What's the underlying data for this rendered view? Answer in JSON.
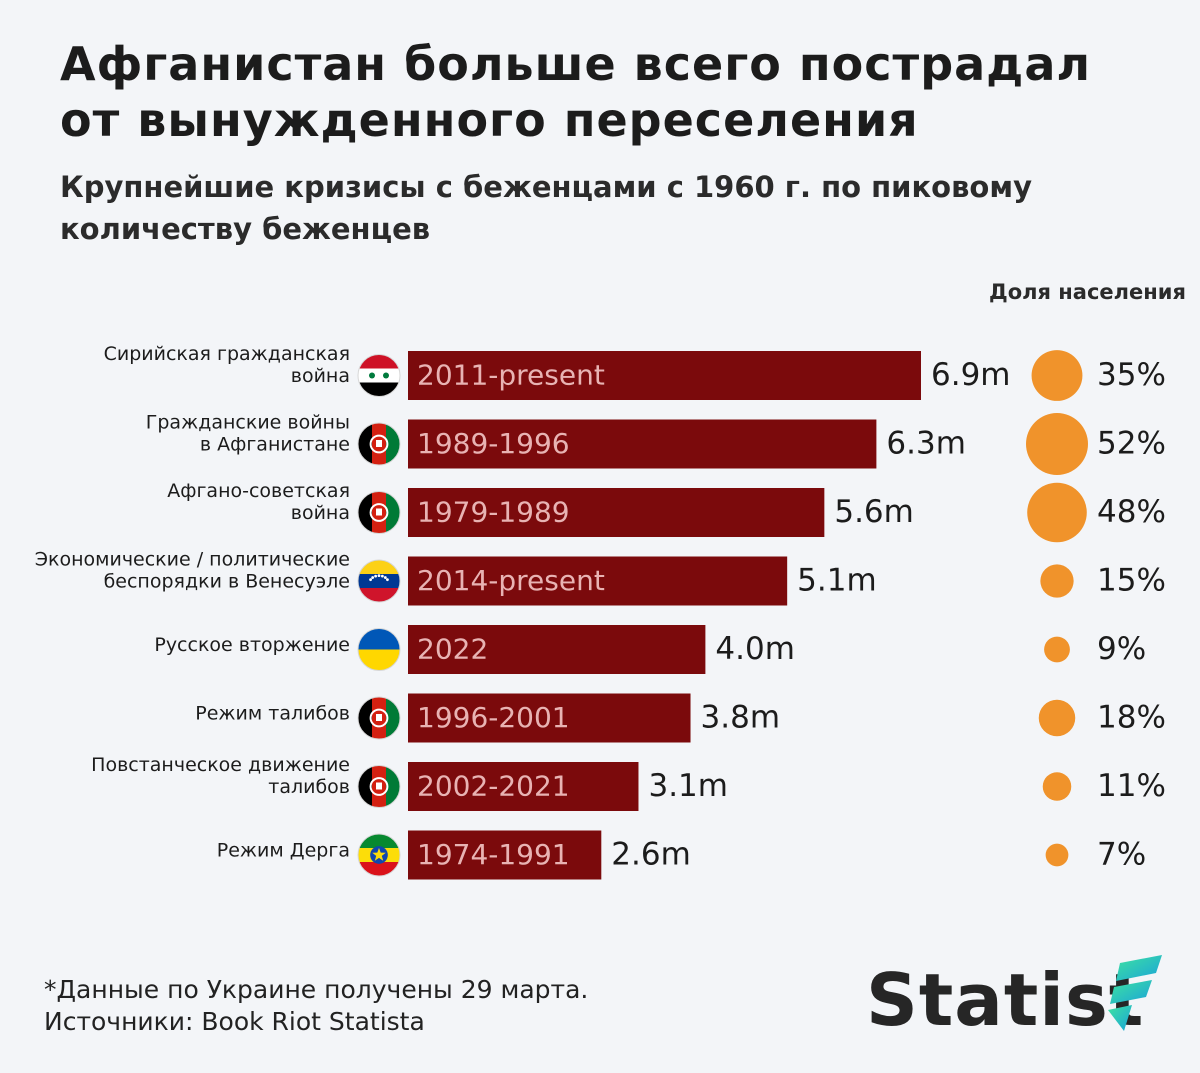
{
  "title": "Афганистан больше всего пострадал от вынужденного переселения",
  "subtitle": "Крупнейшие кризисы с беженцами с 1960 г. по пиковому количеству беженцев",
  "share_header": "Доля населения",
  "footnote": "*Данные по Украине получены 29 марта.",
  "sources": "Источники: Book Riot Statista",
  "brand": "Statist",
  "colors": {
    "bar": "#7b0a0c",
    "bubble": "#f0932b",
    "background": "#f3f5f8",
    "period_text": "#e8b3b3"
  },
  "chart_data": {
    "type": "bar",
    "orientation": "horizontal",
    "title": "Крупнейшие кризисы с беженцами с 1960 г. по пиковому количеству беженцев",
    "xlabel": "",
    "ylabel": "",
    "xlim": [
      0,
      6.9
    ],
    "unit": "m",
    "grid": false,
    "items": [
      {
        "name": [
          "Сирийская гражданская",
          "война"
        ],
        "period": "2011-present",
        "value": 6.9,
        "label": "6.9m",
        "share": 35,
        "share_label": "35%",
        "flag": "syria-flag-icon"
      },
      {
        "name": [
          "Гражданские войны",
          "в Афганистане"
        ],
        "period": "1989-1996",
        "value": 6.3,
        "label": "6.3m",
        "share": 52,
        "share_label": "52%",
        "flag": "afghanistan-flag-icon"
      },
      {
        "name": [
          "Афгано-советская",
          "война"
        ],
        "period": "1979-1989",
        "value": 5.6,
        "label": "5.6m",
        "share": 48,
        "share_label": "48%",
        "flag": "afghanistan-flag-icon"
      },
      {
        "name": [
          "Экономические / политические",
          "беспорядки в Венесуэле"
        ],
        "period": "2014-present",
        "value": 5.1,
        "label": "5.1m",
        "share": 15,
        "share_label": "15%",
        "flag": "venezuela-flag-icon"
      },
      {
        "name": [
          "Русское вторжение"
        ],
        "period": "2022",
        "value": 4.0,
        "label": "4.0m",
        "share": 9,
        "share_label": "9%",
        "flag": "ukraine-flag-icon"
      },
      {
        "name": [
          "Режим талибов"
        ],
        "period": "1996-2001",
        "value": 3.8,
        "label": "3.8m",
        "share": 18,
        "share_label": "18%",
        "flag": "afghanistan-flag-icon"
      },
      {
        "name": [
          "Повстанческое движение",
          "талибов"
        ],
        "period": "2002-2021",
        "value": 3.1,
        "label": "3.1m",
        "share": 11,
        "share_label": "11%",
        "flag": "afghanistan-flag-icon"
      },
      {
        "name": [
          "Режим Дерга"
        ],
        "period": "1974-1991",
        "value": 2.6,
        "label": "2.6m",
        "share": 7,
        "share_label": "7%",
        "flag": "ethiopia-flag-icon"
      }
    ]
  }
}
